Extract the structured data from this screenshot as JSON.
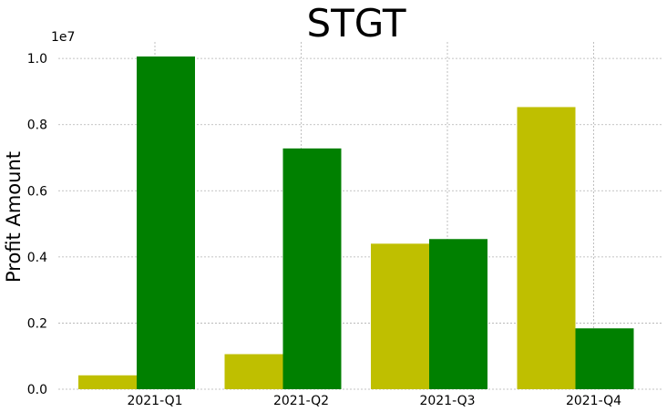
{
  "chart_data": {
    "type": "bar",
    "title": "STGT",
    "xlabel": "",
    "ylabel": "Profit Amount",
    "y_offset_label": "1e7",
    "categories": [
      "2021-Q1",
      "2021-Q2",
      "2021-Q3",
      "2021-Q4"
    ],
    "series": [
      {
        "values": [
          420000,
          1060000,
          4400000,
          8530000
        ],
        "color": "#bfbf00"
      },
      {
        "values": [
          10060000,
          7280000,
          4540000,
          1840000
        ],
        "color": "#008000"
      }
    ],
    "ylim": [
      0,
      10500000
    ],
    "yticks": [
      0,
      2000000,
      4000000,
      6000000,
      8000000,
      10000000
    ],
    "ytick_labels": [
      "0.0",
      "0.2",
      "0.4",
      "0.6",
      "0.8",
      "1.0"
    ],
    "grid": true,
    "legend": "none"
  }
}
